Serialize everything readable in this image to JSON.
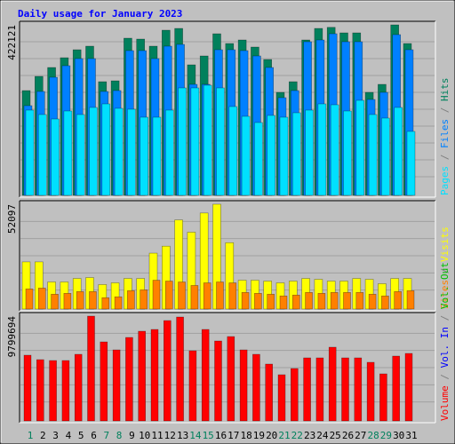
{
  "chart_data": {
    "type": "bar",
    "title": "Daily usage for January 2023",
    "categories": [
      "1",
      "2",
      "3",
      "4",
      "5",
      "6",
      "7",
      "8",
      "9",
      "10",
      "11",
      "12",
      "13",
      "14",
      "15",
      "16",
      "17",
      "18",
      "19",
      "20",
      "21",
      "22",
      "23",
      "24",
      "25",
      "26",
      "27",
      "28",
      "29",
      "30",
      "31"
    ],
    "weekend": [
      true,
      false,
      false,
      false,
      false,
      false,
      true,
      true,
      false,
      false,
      false,
      false,
      false,
      true,
      true,
      false,
      false,
      false,
      false,
      false,
      true,
      true,
      false,
      false,
      false,
      false,
      false,
      true,
      true,
      false,
      false
    ],
    "weekend_color": "#00805c",
    "legend_separator": "/",
    "grid": true,
    "panels": [
      {
        "ylim": [
          0,
          422121
        ],
        "yticks": [
          422121
        ],
        "series": [
          {
            "name": "Hits",
            "color": "#00805c",
            "values": [
              259423,
              294600,
              316585,
              340768,
              360554,
              369348,
              281408,
              283607,
              389135,
              386936,
              369348,
              408921,
              413318,
              323180,
              345165,
              400127,
              375944,
              384738,
              367150,
              336371,
              255026,
              281408,
              384738,
              413318,
              416000,
              402326,
              402326,
              255026,
              274813,
              422121,
              375944
            ]
          },
          {
            "name": "Files",
            "color": "#0080ff",
            "values": [
              222049,
              257225,
              292401,
              320981,
              338569,
              338569,
              257225,
              259423,
              358356,
              358356,
              338569,
              369348,
              373745,
              274813,
              274813,
              360554,
              360554,
              358356,
              345165,
              316585,
              241835,
              259423,
              380341,
              384738,
              400127,
              380341,
              380341,
              237438,
              255026,
              397929,
              360554
            ]
          },
          {
            "name": "Pages",
            "color": "#00e0ff",
            "values": [
              211056,
              200064,
              189071,
              208858,
              200064,
              217652,
              226446,
              215453,
              213255,
              193468,
              193468,
              211056,
              266019,
              266019,
              272614,
              266019,
              219850,
              195667,
              180277,
              197865,
              193468,
              204461,
              211056,
              226446,
              224247,
              208858,
              235240,
              200064,
              191270,
              217652,
              158292
            ]
          }
        ]
      },
      {
        "ylim": [
          0,
          52097
        ],
        "yticks": [
          52097
        ],
        "series": [
          {
            "name": "Visits",
            "color": "#ffff00",
            "values": [
              23441,
              23441,
              13457,
              13457,
              15194,
              15628,
              12155,
              13023,
              15194,
              15194,
              27782,
              31255,
              44278,
              38201,
              47751,
              52097,
              32992,
              14325,
              14325,
              13891,
              13023,
              13891,
              15194,
              14759,
              13891,
              13891,
              15194,
              14759,
              12589,
              15194,
              15194
            ]
          },
          {
            "name": "Sites",
            "color": "#ff8000",
            "values": [
              9984,
              10418,
              7380,
              7814,
              8682,
              8682,
              5643,
              6077,
              9116,
              9550,
              14325,
              13891,
              13457,
              11721,
              13023,
              13457,
              13023,
              8248,
              7814,
              7380,
              6512,
              6946,
              8248,
              7814,
              8248,
              8248,
              8248,
              7380,
              6512,
              8682,
              9116
            ]
          }
        ]
      },
      {
        "ylim": [
          0,
          9799694
        ],
        "yticks": [
          9799694
        ],
        "series": [
          {
            "name": "Volume",
            "color": "#ff0000",
            "values": [
              6145552,
              5730312,
              5647264,
              5647264,
              6228600,
              9799694,
              7391272,
              6643840,
              7806512,
              8387848,
              8553944,
              9384424,
              9716616,
              6560792,
              8553944,
              7474320,
              7889560,
              6643840,
              6228600,
              5315072,
              4318496,
              4899832,
              5896408,
              5896408,
              6892984,
              5896408,
              5896408,
              5481168,
              4401544,
              6062504,
              6311648
            ]
          }
        ],
        "legend_extra": [
          {
            "name": "Vol. In",
            "color": "#0000ff"
          },
          {
            "name": "Vol. Out",
            "color": "#00c000"
          }
        ]
      }
    ]
  }
}
